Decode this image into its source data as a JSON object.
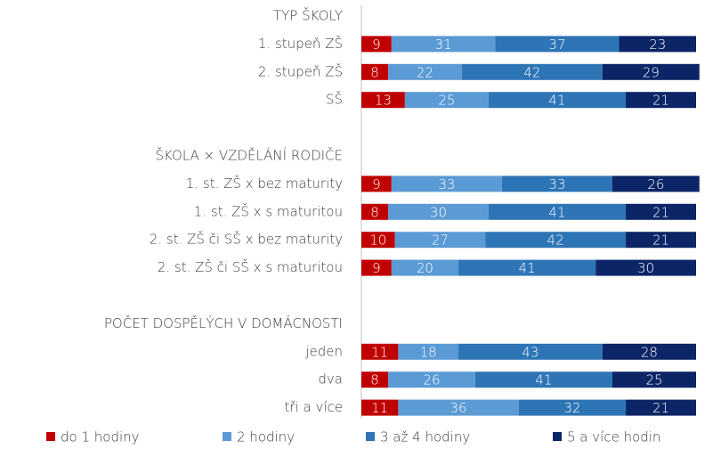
{
  "chart_data": {
    "type": "bar",
    "orientation": "horizontal",
    "stacked": true,
    "categories": [
      "TYP ŠKOLY",
      "1. stupeň ZŠ",
      "2. stupeň ZŠ",
      "SŠ",
      null,
      "ŠKOLA × VZDĚLÁNÍ RODIČE",
      "1. st. ZŠ x bez maturity",
      "1. st. ZŠ x s maturitou",
      "2. st. ZŠ či SŠ x bez maturity",
      "2. st. ZŠ či SŠ x s maturitou",
      null,
      "POČET DOSPĚLÝCH V DOMÁCNOSTI",
      "jeden",
      "dva",
      "tři a více"
    ],
    "series": [
      {
        "name": "do 1 hodiny",
        "color": "#c00000",
        "values": [
          null,
          9,
          8,
          13,
          null,
          null,
          9,
          8,
          10,
          9,
          null,
          null,
          11,
          8,
          11
        ]
      },
      {
        "name": "2 hodiny",
        "color": "#5b9bd5",
        "values": [
          null,
          31,
          22,
          25,
          null,
          null,
          33,
          30,
          27,
          20,
          null,
          null,
          18,
          26,
          36
        ]
      },
      {
        "name": "3 až 4 hodiny",
        "color": "#2e75b6",
        "values": [
          null,
          37,
          42,
          41,
          null,
          null,
          33,
          41,
          42,
          41,
          null,
          null,
          43,
          41,
          32
        ]
      },
      {
        "name": "5 a více hodin",
        "color": "#0b2566",
        "values": [
          null,
          23,
          29,
          21,
          null,
          null,
          26,
          21,
          21,
          30,
          null,
          null,
          28,
          25,
          21
        ]
      }
    ],
    "xlim": [
      0,
      100
    ],
    "legend": "bottom"
  }
}
